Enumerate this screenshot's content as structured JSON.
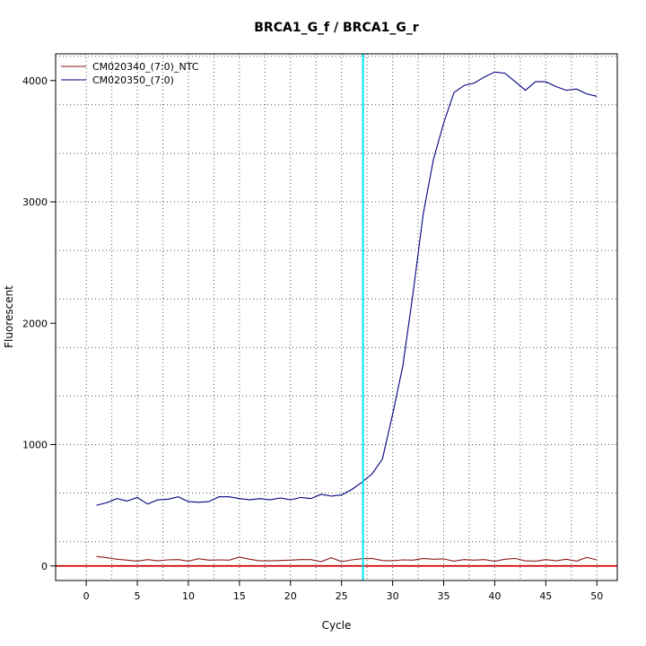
{
  "chart_data": {
    "type": "line",
    "title": "BRCA1_G_f / BRCA1_G_r",
    "xlabel": "Cycle",
    "ylabel": "Fluorescent",
    "xlim": [
      -3,
      52
    ],
    "ylim": [
      -120,
      4220
    ],
    "xticks": [
      0,
      5,
      10,
      15,
      20,
      25,
      30,
      35,
      40,
      45,
      50
    ],
    "yticks": [
      0,
      1000,
      2000,
      3000,
      4000
    ],
    "x_minor_grid": [
      2.5,
      7.5,
      12.5,
      17.5,
      22.5,
      27.5,
      32.5,
      37.5,
      42.5,
      47.5
    ],
    "y_minor_grid": [
      200,
      600,
      1000,
      1400,
      1800,
      2200,
      2600,
      3000,
      3400,
      3800,
      4200
    ],
    "grid": true,
    "legend_position": "top-left",
    "threshold": {
      "type": "vertical",
      "x": 27.1,
      "color": "#00e5ee"
    },
    "baseline": {
      "type": "horizontal",
      "y": 0,
      "color": "#cc0000"
    },
    "x": [
      1,
      2,
      3,
      4,
      5,
      6,
      7,
      8,
      9,
      10,
      11,
      12,
      13,
      14,
      15,
      16,
      17,
      18,
      19,
      20,
      21,
      22,
      23,
      24,
      25,
      26,
      27,
      28,
      29,
      30,
      31,
      32,
      33,
      34,
      35,
      36,
      37,
      38,
      39,
      40,
      41,
      42,
      43,
      44,
      45,
      46,
      47,
      48,
      49,
      50
    ],
    "series": [
      {
        "name": "CM020340_(7:0)_NTC",
        "color": "#8b1a1a",
        "values": [
          78,
          68,
          55,
          48,
          40,
          52,
          42,
          50,
          52,
          40,
          60,
          48,
          50,
          48,
          72,
          55,
          42,
          42,
          45,
          48,
          52,
          52,
          35,
          68,
          35,
          50,
          60,
          62,
          45,
          42,
          50,
          48,
          62,
          55,
          58,
          40,
          52,
          48,
          52,
          38,
          55,
          62,
          42,
          40,
          52,
          42,
          55,
          40,
          70,
          50
        ]
      },
      {
        "name": "CM020350_(7:0)",
        "color": "#000080",
        "values": [
          500,
          520,
          555,
          535,
          565,
          510,
          545,
          550,
          570,
          530,
          525,
          530,
          570,
          570,
          555,
          545,
          555,
          545,
          560,
          545,
          565,
          555,
          590,
          575,
          585,
          630,
          690,
          760,
          880,
          1250,
          1650,
          2250,
          2900,
          3350,
          3650,
          3900,
          3960,
          3980,
          4030,
          4070,
          4060,
          3990,
          3920,
          3990,
          3990,
          3950,
          3920,
          3930,
          3890,
          3870
        ]
      }
    ]
  }
}
